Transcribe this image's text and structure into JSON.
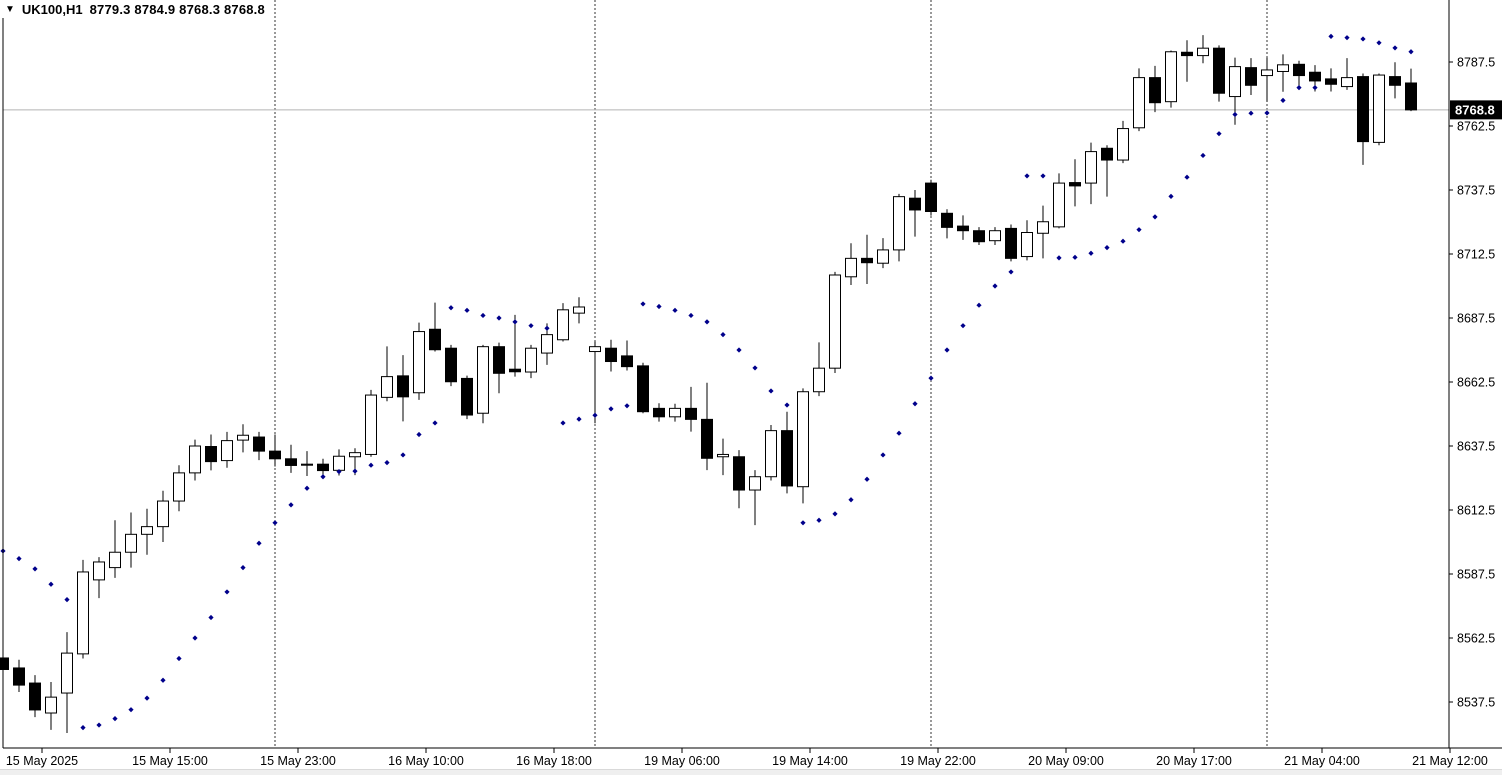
{
  "header": {
    "symbol_period": "UK100,H1",
    "open": "8779.3",
    "high": "8784.9",
    "low": "8768.3",
    "close": "8768.8"
  },
  "colors": {
    "background": "#ffffff",
    "candle_border": "#000000",
    "bull_fill": "#ffffff",
    "bear_fill": "#000000",
    "sar_dot": "#00008b",
    "separator": "#333333",
    "current_price_line": "#b3b3b3",
    "badge_bg": "#000000",
    "badge_text": "#ffffff",
    "axis_text": "#000000"
  },
  "chart_data": {
    "type": "candlestick",
    "symbol": "UK100",
    "timeframe": "H1",
    "indicator": "Parabolic SAR",
    "title": "UK100,H1",
    "current_price": "8768.8",
    "y_axis": {
      "ticks": [
        8787.5,
        8762.5,
        8737.5,
        8712.5,
        8687.5,
        8662.5,
        8637.5,
        8612.5,
        8587.5,
        8562.5,
        8537.5
      ]
    },
    "x_axis": {
      "labels": [
        "15 May 2025",
        "15 May 15:00",
        "15 May 23:00",
        "16 May 10:00",
        "16 May 18:00",
        "19 May 06:00",
        "19 May 14:00",
        "19 May 22:00",
        "20 May 09:00",
        "20 May 17:00",
        "21 May 04:00",
        "21 May 12:00"
      ]
    },
    "separators_bar_index": [
      17,
      37,
      58,
      79
    ],
    "candles": [
      [
        8554.7,
        8556.0,
        8549.0,
        8550.2
      ],
      [
        8550.8,
        8554.0,
        8541.4,
        8544.1
      ],
      [
        8544.9,
        8548.0,
        8531.6,
        8534.4
      ],
      [
        8533.2,
        8545.3,
        8526.6,
        8539.4
      ],
      [
        8541.0,
        8564.8,
        8525.4,
        8556.6
      ],
      [
        8556.3,
        8593.0,
        8554.5,
        8588.3
      ],
      [
        8585.2,
        8594.1,
        8578.1,
        8592.2
      ],
      [
        8590.0,
        8608.5,
        8586.0,
        8596.0
      ],
      [
        8596.0,
        8611.5,
        8590.0,
        8603.0
      ],
      [
        8603.0,
        8613.0,
        8595.0,
        8606.0
      ],
      [
        8606.0,
        8620.0,
        8600.0,
        8616.0
      ],
      [
        8616.0,
        8630.0,
        8612.0,
        8627.0
      ],
      [
        8627.0,
        8640.0,
        8624.0,
        8637.5
      ],
      [
        8637.3,
        8642.0,
        8628.0,
        8631.4
      ],
      [
        8631.8,
        8643.0,
        8629.0,
        8639.6
      ],
      [
        8639.8,
        8646.0,
        8635.0,
        8641.7
      ],
      [
        8641.0,
        8643.0,
        8632.0,
        8635.5
      ],
      [
        8635.5,
        8642.0,
        8629.5,
        8632.5
      ],
      [
        8632.5,
        8638.0,
        8627.0,
        8629.9
      ],
      [
        8630.0,
        8635.5,
        8625.8,
        8630.4
      ],
      [
        8630.4,
        8632.5,
        8625.5,
        8627.9
      ],
      [
        8628.0,
        8636.2,
        8626.0,
        8633.5
      ],
      [
        8633.3,
        8636.6,
        8626.1,
        8634.9
      ],
      [
        8634.2,
        8659.4,
        8633.3,
        8657.4
      ],
      [
        8656.5,
        8676.4,
        8655.0,
        8664.6
      ],
      [
        8664.9,
        8673.0,
        8647.1,
        8656.7
      ],
      [
        8658.3,
        8685.7,
        8655.5,
        8682.2
      ],
      [
        8683.1,
        8693.5,
        8674.4,
        8675.1
      ],
      [
        8675.7,
        8677.0,
        8660.9,
        8662.6
      ],
      [
        8663.9,
        8665.0,
        8648.0,
        8649.6
      ],
      [
        8650.3,
        8677.0,
        8646.4,
        8676.3
      ],
      [
        8676.3,
        8677.9,
        8658.1,
        8665.9
      ],
      [
        8667.5,
        8688.7,
        8664.6,
        8666.5
      ],
      [
        8666.4,
        8677.0,
        8664.0,
        8675.7
      ],
      [
        8673.8,
        8685.4,
        8669.2,
        8681.0
      ],
      [
        8679.0,
        8693.3,
        8678.3,
        8690.7
      ],
      [
        8689.4,
        8695.6,
        8685.4,
        8691.8
      ],
      [
        8674.4,
        8678.3,
        8646.4,
        8676.3
      ],
      [
        8675.7,
        8679.0,
        8666.6,
        8670.5
      ],
      [
        8672.7,
        8678.7,
        8667.0,
        8668.5
      ],
      [
        8668.8,
        8670.0,
        8650.3,
        8650.9
      ],
      [
        8652.2,
        8654.2,
        8647.0,
        8648.9
      ],
      [
        8648.9,
        8654.0,
        8647.0,
        8652.2
      ],
      [
        8652.2,
        8660.6,
        8643.1,
        8647.9
      ],
      [
        8647.9,
        8662.2,
        8628.1,
        8632.7
      ],
      [
        8633.3,
        8640.4,
        8626.1,
        8634.2
      ],
      [
        8633.3,
        8635.9,
        8613.2,
        8620.3
      ],
      [
        8620.3,
        8628.1,
        8606.6,
        8625.5
      ],
      [
        8625.5,
        8645.7,
        8624.0,
        8643.5
      ],
      [
        8643.5,
        8650.9,
        8619.0,
        8621.9
      ],
      [
        8621.6,
        8660.0,
        8615.1,
        8658.7
      ],
      [
        8658.7,
        8678.0,
        8657.0,
        8667.9
      ],
      [
        8667.9,
        8705.5,
        8666.0,
        8704.3
      ],
      [
        8703.6,
        8716.7,
        8700.4,
        8710.8
      ],
      [
        8710.8,
        8720.0,
        8700.8,
        8709.1
      ],
      [
        8708.9,
        8718.7,
        8707.0,
        8714.1
      ],
      [
        8714.1,
        8736.0,
        8709.6,
        8734.9
      ],
      [
        8734.3,
        8737.5,
        8719.3,
        8729.7
      ],
      [
        8740.2,
        8741.5,
        8727.5,
        8729.1
      ],
      [
        8728.4,
        8730.0,
        8718.6,
        8722.9
      ],
      [
        8723.4,
        8727.6,
        8718.0,
        8721.6
      ],
      [
        8721.6,
        8723.0,
        8716.0,
        8717.3
      ],
      [
        8717.7,
        8723.0,
        8716.0,
        8721.6
      ],
      [
        8722.5,
        8724.0,
        8709.6,
        8710.8
      ],
      [
        8711.5,
        8725.7,
        8710.0,
        8720.9
      ],
      [
        8720.6,
        8731.4,
        8710.8,
        8725.1
      ],
      [
        8723.1,
        8744.0,
        8722.5,
        8740.2
      ],
      [
        8740.4,
        8749.5,
        8731.1,
        8739.1
      ],
      [
        8740.2,
        8756.0,
        8732.0,
        8752.5
      ],
      [
        8753.8,
        8755.0,
        8734.9,
        8749.2
      ],
      [
        8749.2,
        8764.5,
        8748.0,
        8761.5
      ],
      [
        8761.8,
        8785.0,
        8760.5,
        8781.4
      ],
      [
        8781.4,
        8786.0,
        8767.9,
        8771.6
      ],
      [
        8772.0,
        8792.0,
        8769.7,
        8791.5
      ],
      [
        8791.3,
        8796.0,
        8779.8,
        8790.0
      ],
      [
        8790.0,
        8798.0,
        8787.0,
        8792.9
      ],
      [
        8792.9,
        8794.0,
        8772.0,
        8775.3
      ],
      [
        8774.0,
        8789.2,
        8763.0,
        8785.7
      ],
      [
        8785.3,
        8789.0,
        8774.6,
        8778.4
      ],
      [
        8782.2,
        8789.2,
        8772.0,
        8784.4
      ],
      [
        8783.8,
        8790.5,
        8775.9,
        8786.4
      ],
      [
        8786.6,
        8788.0,
        8776.6,
        8782.2
      ],
      [
        8783.5,
        8786.3,
        8776.0,
        8780.1
      ],
      [
        8780.9,
        8785.0,
        8776.0,
        8778.8
      ],
      [
        8777.9,
        8789.0,
        8776.6,
        8781.4
      ],
      [
        8781.8,
        8783.0,
        8747.3,
        8756.4
      ],
      [
        8756.1,
        8783.0,
        8755.0,
        8782.4
      ],
      [
        8781.8,
        8787.4,
        8773.3,
        8778.4
      ],
      [
        8779.3,
        8784.9,
        8768.3,
        8768.8
      ]
    ],
    "sar": [
      8596.5,
      8593.5,
      8589.5,
      8583.5,
      8577.5,
      8527.5,
      8528.5,
      8531.0,
      8534.5,
      8539.0,
      8546.0,
      8554.5,
      8562.5,
      8570.5,
      8580.5,
      8590.0,
      8599.5,
      8607.5,
      8614.5,
      8621.0,
      8625.5,
      8627.5,
      8627.7,
      8630.0,
      8631.0,
      8634.0,
      8642.0,
      8646.5,
      8691.5,
      8690.5,
      8688.5,
      8687.5,
      8686.0,
      8684.5,
      8683.5,
      8646.5,
      8648.0,
      8649.5,
      8652.0,
      8653.2,
      8693.0,
      8692.0,
      8690.5,
      8688.5,
      8686.0,
      8681.0,
      8675.0,
      8668.0,
      8659.0,
      8653.5,
      8607.5,
      8608.5,
      8611.0,
      8616.5,
      8624.5,
      8634.0,
      8642.5,
      8654.0,
      8664.0,
      8675.0,
      8684.5,
      8692.5,
      8700.0,
      8705.5,
      8743.0,
      8743.0,
      8711.0,
      8711.2,
      8712.8,
      8715.0,
      8717.5,
      8722.0,
      8727.0,
      8735.0,
      8742.5,
      8751.0,
      8759.5,
      8767.0,
      8767.5,
      8767.6,
      8772.5,
      8777.5,
      8777.5,
      8797.5,
      8797.0,
      8796.5,
      8795.0,
      8793.0,
      8791.5
    ]
  }
}
